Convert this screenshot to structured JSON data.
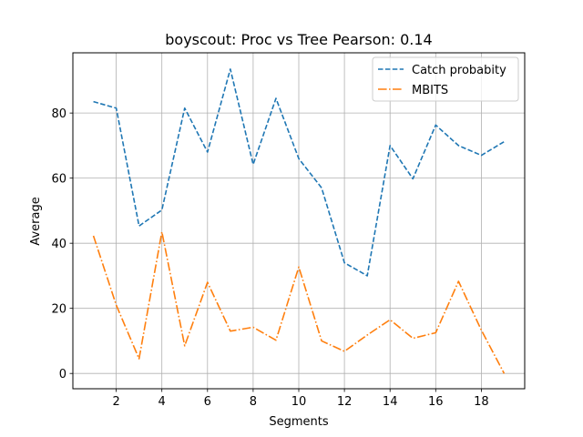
{
  "chart_data": {
    "type": "line",
    "title": "boyscout: Proc vs Tree Pearson: 0.14",
    "xlabel": "Segments",
    "ylabel": "Average",
    "xlim": [
      0.1,
      19.9
    ],
    "ylim": [
      -4.7,
      98.5
    ],
    "xticks": [
      2,
      4,
      6,
      8,
      10,
      12,
      14,
      16,
      18
    ],
    "yticks": [
      0,
      20,
      40,
      60,
      80
    ],
    "grid": true,
    "legend_position": "upper right",
    "x": [
      1,
      2,
      3,
      4,
      5,
      6,
      7,
      8,
      9,
      10,
      11,
      12,
      13,
      14,
      15,
      16,
      17,
      18,
      19
    ],
    "series": [
      {
        "name": "Catch probabity",
        "color": "#1f77b4",
        "linestyle": "dashed",
        "values": [
          83.5,
          81.5,
          45.3,
          50.2,
          81.5,
          68.0,
          93.5,
          64.2,
          84.5,
          66.0,
          57.0,
          34.0,
          30.0,
          70.0,
          59.8,
          76.3,
          70.0,
          67.0,
          71.2
        ]
      },
      {
        "name": "MBITS",
        "color": "#ff7f0e",
        "linestyle": "dashdot",
        "values": [
          42.3,
          21.0,
          4.5,
          43.5,
          8.5,
          28.0,
          13.0,
          14.2,
          10.2,
          32.7,
          10.0,
          6.8,
          11.8,
          16.5,
          10.8,
          12.5,
          28.3,
          13.3,
          0.0
        ]
      }
    ]
  }
}
